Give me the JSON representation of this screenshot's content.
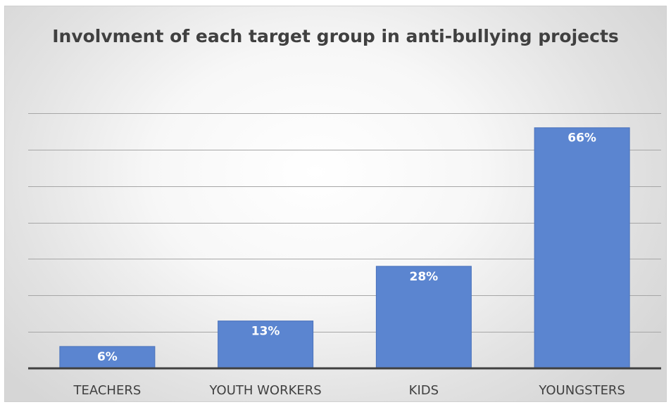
{
  "chart_data": {
    "type": "bar",
    "title": "Involvment of each target group in anti-bullying projects",
    "categories": [
      "TEACHERS",
      "YOUTH WORKERS",
      "KIDS",
      "YOUNGSTERS"
    ],
    "values": [
      6,
      13,
      28,
      66
    ],
    "value_labels": [
      "6%",
      "13%",
      "28%",
      "66%"
    ],
    "ylim": [
      0,
      70
    ],
    "ytick_step": 10,
    "grid": true,
    "legend": "none",
    "colors": {
      "bar": "#5b85d0",
      "bar_edge": "#4a72bb",
      "gridline": "#a6a6a6",
      "axis": "#404040"
    }
  }
}
